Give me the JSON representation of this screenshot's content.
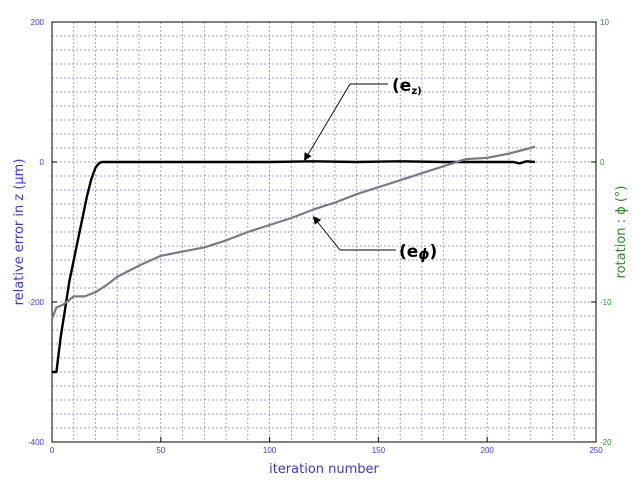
{
  "chart_data": {
    "type": "line",
    "xlabel": "iteration number",
    "ylabel": "relative error in z (μm)",
    "y2label": "rotation : ϕ (°)",
    "xlim": [
      0,
      250
    ],
    "ylim": [
      -400,
      200
    ],
    "y2lim": [
      -20,
      10
    ],
    "xticks": [
      "0",
      "50",
      "100",
      "150",
      "200",
      "250"
    ],
    "yticks": [
      "200",
      "0",
      "-200",
      "-400"
    ],
    "y2ticks": [
      "10",
      "0",
      "-10",
      "-20"
    ],
    "grid": "on",
    "colors": {
      "left_axis": "#3a3ad0",
      "right_axis": "#2e8b2e",
      "grid": "#7d7db5",
      "series_z": "#000000",
      "series_phi": "#7a7a86"
    },
    "series": [
      {
        "name": "(e_z)",
        "axis": "left",
        "x": [
          0,
          2,
          4,
          6,
          8,
          10,
          12,
          14,
          16,
          18,
          20,
          21,
          22,
          23,
          25,
          40,
          60,
          80,
          100,
          120,
          140,
          160,
          180,
          200,
          212,
          215,
          218,
          222
        ],
        "y": [
          -300,
          -300,
          -250,
          -210,
          -170,
          -140,
          -110,
          -80,
          -50,
          -25,
          -8,
          -4,
          -1,
          0,
          0,
          0,
          0,
          0,
          0,
          1,
          0,
          1,
          0,
          0,
          0,
          -2,
          1,
          0
        ]
      },
      {
        "name": "(e_ϕ)",
        "axis": "right",
        "x": [
          0,
          2,
          5,
          10,
          15,
          20,
          25,
          30,
          40,
          50,
          60,
          70,
          80,
          90,
          100,
          110,
          120,
          130,
          140,
          150,
          160,
          170,
          180,
          190,
          200,
          210,
          220,
          222
        ],
        "y": [
          -11.2,
          -10.4,
          -10.2,
          -9.6,
          -9.6,
          -9.3,
          -8.8,
          -8.2,
          -7.4,
          -6.7,
          -6.4,
          -6.1,
          -5.6,
          -5.0,
          -4.5,
          -4.0,
          -3.4,
          -2.9,
          -2.3,
          -1.8,
          -1.3,
          -0.8,
          -0.3,
          0.2,
          0.3,
          0.6,
          1.0,
          1.1
        ]
      }
    ],
    "annotations": {
      "ez_base": "e",
      "ez_sub": "z)",
      "ephi_base": "e",
      "ephi_sub": "ϕ"
    }
  }
}
